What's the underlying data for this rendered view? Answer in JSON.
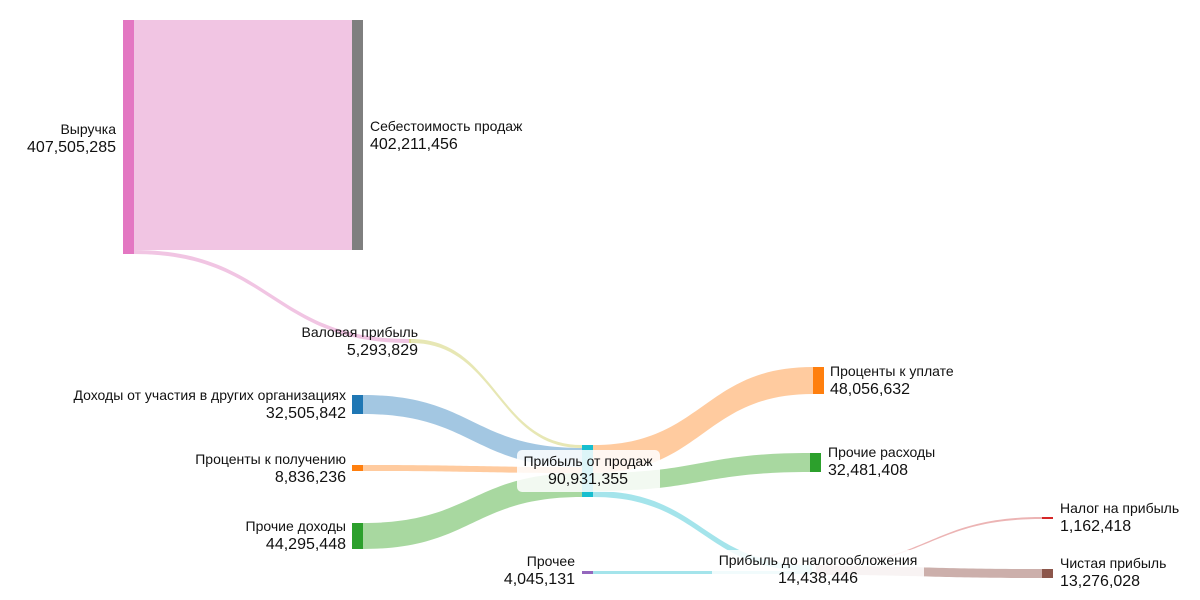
{
  "chart_data": {
    "type": "sankey",
    "title": "",
    "nodes": [
      {
        "id": "revenue",
        "label": "Выручка",
        "value": "407,505,285",
        "color": "#e377c2"
      },
      {
        "id": "cogs",
        "label": "Себестоимость продаж",
        "value": "402,211,456",
        "color": "#7f7f7f"
      },
      {
        "id": "gross",
        "label": "Валовая прибыль",
        "value": "5,293,829",
        "color": "#dbdb8d"
      },
      {
        "id": "participation",
        "label": "Доходы от участия в других организациях",
        "value": "32,505,842",
        "color": "#1f77b4"
      },
      {
        "id": "int_recv",
        "label": "Проценты к получению",
        "value": "8,836,236",
        "color": "#ff7f0e"
      },
      {
        "id": "other_inc",
        "label": "Прочие доходы",
        "value": "44,295,448",
        "color": "#2ca02c"
      },
      {
        "id": "sales_profit",
        "label": "Прибыль от продаж",
        "value": "90,931,355",
        "color": "#17becf"
      },
      {
        "id": "int_pay",
        "label": "Проценты к уплате",
        "value": "48,056,632",
        "color": "#ff7f0e"
      },
      {
        "id": "other_exp",
        "label": "Прочие расходы",
        "value": "32,481,408",
        "color": "#2ca02c"
      },
      {
        "id": "other",
        "label": "Прочее",
        "value": "4,045,131",
        "color": "#9467bd"
      },
      {
        "id": "pretax",
        "label": "Прибыль до налогообложения",
        "value": "14,438,446",
        "color": "#ffffff"
      },
      {
        "id": "tax",
        "label": "Налог на прибыль",
        "value": "1,162,418",
        "color": "#d62728"
      },
      {
        "id": "net",
        "label": "Чистая прибыль",
        "value": "13,276,028",
        "color": "#8c564b"
      }
    ],
    "links": [
      {
        "source": "revenue",
        "target": "cogs",
        "value": 402211456,
        "color": "#f0c2e2"
      },
      {
        "source": "revenue",
        "target": "gross",
        "value": 5293829,
        "color": "#f0c2e2"
      },
      {
        "source": "gross",
        "target": "sales_profit",
        "value": 5293829,
        "color": "#e6e6b0"
      },
      {
        "source": "participation",
        "target": "sales_profit",
        "value": 32505842,
        "color": "#9ec4e0"
      },
      {
        "source": "int_recv",
        "target": "sales_profit",
        "value": 8836236,
        "color": "#ffc89a"
      },
      {
        "source": "other_inc",
        "target": "sales_profit",
        "value": 44295448,
        "color": "#a3d69b"
      },
      {
        "source": "sales_profit",
        "target": "int_pay",
        "value": 48056632,
        "color": "#ffc89a"
      },
      {
        "source": "sales_profit",
        "target": "other_exp",
        "value": 32481408,
        "color": "#a3d69b"
      },
      {
        "source": "sales_profit",
        "target": "pretax",
        "value": 10393315,
        "color": "#9fe3ea"
      },
      {
        "source": "other",
        "target": "pretax",
        "value": 4045131,
        "color": "#9fe3ea"
      },
      {
        "source": "pretax",
        "target": "tax",
        "value": 1162418,
        "color": "#ebb0b0"
      },
      {
        "source": "pretax",
        "target": "net",
        "value": 13276028,
        "color": "#c9aba6"
      }
    ]
  }
}
